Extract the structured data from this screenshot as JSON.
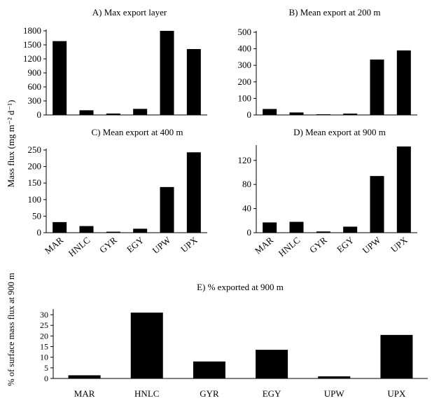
{
  "figure": {
    "shared_ylabel": "Mass flux (mg m⁻² d⁻¹)",
    "panel_e_ylabel": "% of surface mass flux at 900 m"
  },
  "chart_data": [
    {
      "id": "A",
      "type": "bar",
      "title": "A) Max export layer",
      "categories": [
        "MAR",
        "HNLC",
        "GYR",
        "EGY",
        "UPW",
        "UPX"
      ],
      "values": [
        1580,
        100,
        30,
        130,
        1830,
        1410
      ],
      "ylim": [
        0,
        1800
      ],
      "yticks": [
        0,
        300,
        600,
        900,
        1200,
        1500,
        1800
      ],
      "show_xticklabels": false
    },
    {
      "id": "B",
      "type": "bar",
      "title": "B) Mean export at 200 m",
      "categories": [
        "MAR",
        "HNLC",
        "GYR",
        "EGY",
        "UPW",
        "UPX"
      ],
      "values": [
        36,
        15,
        4,
        8,
        335,
        390
      ],
      "ylim": [
        0,
        500
      ],
      "yticks": [
        0,
        100,
        200,
        300,
        400,
        500
      ],
      "show_xticklabels": false
    },
    {
      "id": "C",
      "type": "bar",
      "title": "C) Mean export at 400 m",
      "categories": [
        "MAR",
        "HNLC",
        "GYR",
        "EGY",
        "UPW",
        "UPX"
      ],
      "values": [
        32,
        20,
        3,
        12,
        138,
        243
      ],
      "ylim": [
        0,
        250
      ],
      "yticks": [
        0,
        50,
        100,
        150,
        200,
        250
      ],
      "show_xticklabels": true
    },
    {
      "id": "D",
      "type": "bar",
      "title": "D) Mean export at 900 m",
      "categories": [
        "MAR",
        "HNLC",
        "GYR",
        "EGY",
        "UPW",
        "UPX"
      ],
      "values": [
        17,
        18,
        2,
        10,
        94,
        143
      ],
      "ylim": [
        0,
        143
      ],
      "yticks": [
        0,
        40,
        80,
        120
      ],
      "show_xticklabels": true
    },
    {
      "id": "E",
      "type": "bar",
      "title": "E) % exported at 900 m",
      "categories": [
        "MAR",
        "HNLC",
        "GYR",
        "EGY",
        "UPW",
        "UPX"
      ],
      "values": [
        1.5,
        31,
        8,
        13.5,
        1,
        20.5
      ],
      "ylim": [
        0,
        32
      ],
      "yticks": [
        0,
        5,
        10,
        15,
        20,
        25,
        30
      ],
      "show_xticklabels": true
    }
  ]
}
